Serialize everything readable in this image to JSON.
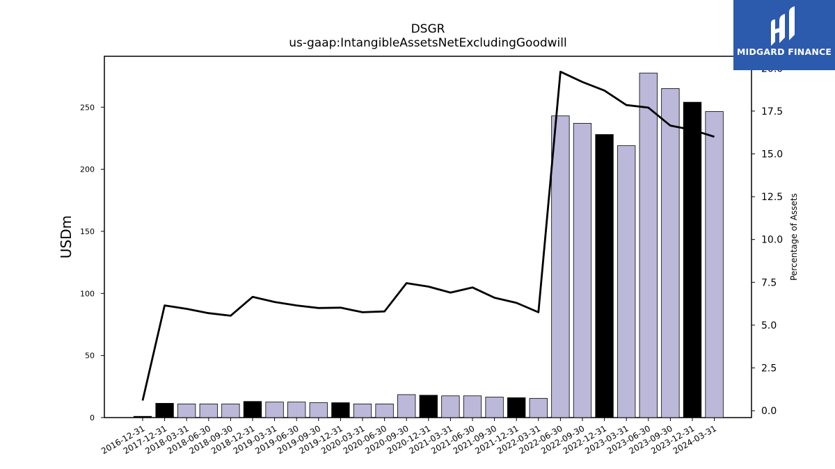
{
  "chart_data": {
    "type": "bar",
    "title": "DSGR",
    "subtitle": "us-gaap:IntangibleAssetsNetExcludingGoodwill",
    "ylabel": "USDm",
    "ylabel_right": "Percentage of Assets",
    "ylim": [
      0,
      291
    ],
    "ylim_right": [
      -0.4,
      20.7
    ],
    "yticks": [
      0,
      50,
      100,
      150,
      200,
      250
    ],
    "yticks_right": [
      "0.0",
      "2.5",
      "5.0",
      "7.5",
      "10.0",
      "12.5",
      "15.0",
      "17.5",
      "20.0"
    ],
    "categories": [
      "2016-12-31",
      "2017-12-31",
      "2018-03-31",
      "2018-06-30",
      "2018-09-30",
      "2018-12-31",
      "2019-03-31",
      "2019-06-30",
      "2019-09-30",
      "2019-12-31",
      "2020-03-31",
      "2020-06-30",
      "2020-09-30",
      "2020-12-31",
      "2021-03-31",
      "2021-06-30",
      "2021-09-30",
      "2021-12-31",
      "2022-03-31",
      "2022-06-30",
      "2022-09-30",
      "2022-12-31",
      "2023-03-31",
      "2023-06-30",
      "2023-09-30",
      "2023-12-31",
      "2024-03-31"
    ],
    "series": [
      {
        "type": "bar",
        "values": [
          1,
          11.5,
          11,
          11,
          11,
          13,
          12.5,
          12.5,
          12,
          12,
          11,
          11,
          18.5,
          18,
          17.5,
          17.5,
          16.5,
          16,
          15.5,
          243,
          237,
          228,
          219,
          277.5,
          265,
          254,
          246.5
        ],
        "annual_flags": [
          true,
          true,
          false,
          false,
          false,
          true,
          false,
          false,
          false,
          true,
          false,
          false,
          false,
          true,
          false,
          false,
          false,
          true,
          false,
          false,
          false,
          true,
          false,
          false,
          false,
          true,
          false
        ],
        "axis": "left"
      },
      {
        "type": "line",
        "values": [
          0.6,
          6.15,
          5.95,
          5.7,
          5.55,
          6.65,
          6.35,
          6.15,
          6.0,
          6.02,
          5.75,
          5.8,
          7.45,
          7.25,
          6.9,
          7.2,
          6.6,
          6.3,
          5.75,
          19.8,
          19.2,
          18.7,
          17.85,
          17.7,
          16.65,
          16.4,
          16.0
        ],
        "axis": "right"
      }
    ]
  },
  "colors": {
    "bar_quarter": "#bcb8da",
    "bar_annual": "#000000",
    "line": "#000000",
    "logo_bg": "#2c5aad"
  },
  "logo": {
    "text": "MIDGARD FINANCE",
    "icon": "midgard-logo-icon"
  }
}
